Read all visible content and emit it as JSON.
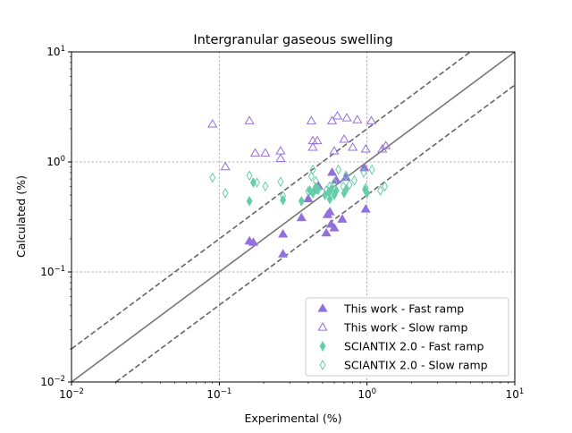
{
  "chart_data": {
    "type": "scatter",
    "title": "Intergranular gaseous swelling",
    "xlabel": "Experimental (%)",
    "ylabel": "Calculated (%)",
    "xscale": "log",
    "yscale": "log",
    "xlim": [
      0.01,
      10
    ],
    "ylim": [
      0.01,
      10
    ],
    "x_tick_labels": [
      {
        "value": 0.01,
        "base": "10",
        "exp": "−2"
      },
      {
        "value": 0.1,
        "base": "10",
        "exp": "−1"
      },
      {
        "value": 1,
        "base": "10",
        "exp": "0"
      },
      {
        "value": 10,
        "base": "10",
        "exp": "1"
      }
    ],
    "y_tick_labels": [
      {
        "value": 0.01,
        "base": "10",
        "exp": "−2"
      },
      {
        "value": 0.1,
        "base": "10",
        "exp": "−1"
      },
      {
        "value": 1,
        "base": "10",
        "exp": "0"
      },
      {
        "value": 10,
        "base": "10",
        "exp": "1"
      }
    ],
    "grid": "major, dashed",
    "reference_lines": [
      {
        "factor": 1,
        "style": "solid",
        "color": "#777777"
      },
      {
        "factor": 2,
        "style": "dashed",
        "color": "#666666"
      },
      {
        "factor": 0.5,
        "style": "dashed",
        "color": "#666666"
      }
    ],
    "legend": {
      "position": "lower-right"
    },
    "series": [
      {
        "name": "This work - Fast ramp",
        "marker": "triangle",
        "filled": true,
        "color": "#9370db",
        "points": [
          [
            0.16,
            0.19
          ],
          [
            0.17,
            0.185
          ],
          [
            0.27,
            0.22
          ],
          [
            0.27,
            0.145
          ],
          [
            0.36,
            0.31
          ],
          [
            0.4,
            0.46
          ],
          [
            0.44,
            0.55
          ],
          [
            0.47,
            0.6
          ],
          [
            0.53,
            0.225
          ],
          [
            0.54,
            0.33
          ],
          [
            0.56,
            0.35
          ],
          [
            0.57,
            0.27
          ],
          [
            0.58,
            0.8
          ],
          [
            0.6,
            0.25
          ],
          [
            0.62,
            0.68
          ],
          [
            0.68,
            0.3
          ],
          [
            0.72,
            0.72
          ],
          [
            0.96,
            0.88
          ],
          [
            0.98,
            0.37
          ]
        ]
      },
      {
        "name": "This work - Slow ramp",
        "marker": "triangle",
        "filled": false,
        "color": "#9370db",
        "points": [
          [
            0.09,
            2.2
          ],
          [
            0.11,
            0.9
          ],
          [
            0.16,
            2.35
          ],
          [
            0.175,
            1.2
          ],
          [
            0.205,
            1.2
          ],
          [
            0.26,
            1.25
          ],
          [
            0.26,
            1.07
          ],
          [
            0.42,
            2.35
          ],
          [
            0.43,
            1.55
          ],
          [
            0.43,
            1.35
          ],
          [
            0.46,
            1.55
          ],
          [
            0.58,
            2.35
          ],
          [
            0.6,
            1.25
          ],
          [
            0.63,
            2.6
          ],
          [
            0.7,
            1.6
          ],
          [
            0.73,
            2.5
          ],
          [
            0.8,
            1.35
          ],
          [
            0.86,
            2.4
          ],
          [
            0.98,
            1.3
          ],
          [
            1.07,
            2.35
          ],
          [
            1.27,
            1.3
          ],
          [
            1.34,
            1.4
          ]
        ]
      },
      {
        "name": "SCIANTIX 2.0 - Fast ramp",
        "marker": "thin_diamond",
        "filled": true,
        "color": "#66cdaa",
        "points": [
          [
            0.16,
            0.44
          ],
          [
            0.17,
            0.65
          ],
          [
            0.27,
            0.45
          ],
          [
            0.36,
            0.44
          ],
          [
            0.41,
            0.55
          ],
          [
            0.43,
            0.52
          ],
          [
            0.45,
            0.59
          ],
          [
            0.46,
            0.56
          ],
          [
            0.52,
            0.5
          ],
          [
            0.55,
            0.53
          ],
          [
            0.56,
            0.46
          ],
          [
            0.57,
            0.56
          ],
          [
            0.6,
            0.5
          ],
          [
            0.62,
            0.55
          ],
          [
            0.7,
            0.52
          ],
          [
            0.72,
            0.56
          ],
          [
            0.97,
            0.56
          ],
          [
            1.0,
            0.52
          ]
        ]
      },
      {
        "name": "SCIANTIX 2.0 - Slow ramp",
        "marker": "thin_diamond",
        "filled": false,
        "color": "#66cdaa",
        "points": [
          [
            0.09,
            0.72
          ],
          [
            0.11,
            0.52
          ],
          [
            0.16,
            0.75
          ],
          [
            0.18,
            0.65
          ],
          [
            0.205,
            0.6
          ],
          [
            0.26,
            0.66
          ],
          [
            0.27,
            0.49
          ],
          [
            0.4,
            0.54
          ],
          [
            0.42,
            0.74
          ],
          [
            0.43,
            0.85
          ],
          [
            0.45,
            0.67
          ],
          [
            0.47,
            0.56
          ],
          [
            0.53,
            0.55
          ],
          [
            0.56,
            0.6
          ],
          [
            0.6,
            0.65
          ],
          [
            0.64,
            0.85
          ],
          [
            0.69,
            0.6
          ],
          [
            0.72,
            0.75
          ],
          [
            0.76,
            0.62
          ],
          [
            0.82,
            0.68
          ],
          [
            0.95,
            0.8
          ],
          [
            0.98,
            0.58
          ],
          [
            1.08,
            0.85
          ],
          [
            1.23,
            0.55
          ],
          [
            1.32,
            0.6
          ]
        ]
      }
    ]
  }
}
